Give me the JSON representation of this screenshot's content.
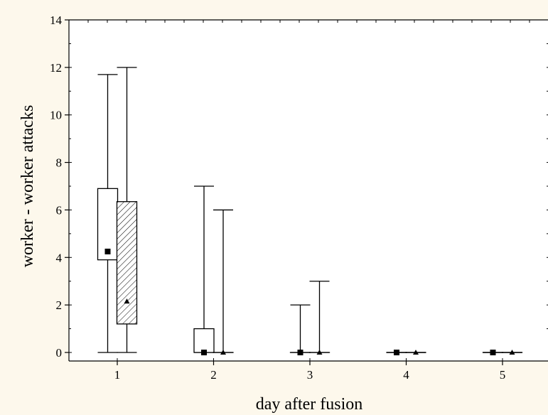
{
  "chart_data": {
    "type": "box",
    "title": "",
    "xlabel": "day after fusion",
    "ylabel": "worker - worker attacks",
    "categories": [
      "1",
      "2",
      "3",
      "4",
      "5"
    ],
    "ylim": [
      0,
      14
    ],
    "yticks": [
      0,
      2,
      4,
      6,
      8,
      10,
      12,
      14
    ],
    "grid": false,
    "legend": "none",
    "series": [
      {
        "marker": "square",
        "fill": "white",
        "boxes": [
          {
            "category": "1",
            "min": 0,
            "q1": 3.9,
            "q3": 6.9,
            "max": 11.7,
            "median": 4.25
          },
          {
            "category": "2",
            "min": 0,
            "q1": 0,
            "q3": 1.0,
            "max": 7.0,
            "median": 0
          },
          {
            "category": "3",
            "min": 0,
            "q1": 0,
            "q3": 0,
            "max": 2.0,
            "median": 0
          },
          {
            "category": "4",
            "min": 0,
            "q1": 0,
            "q3": 0,
            "max": 0,
            "median": 0
          },
          {
            "category": "5",
            "min": 0,
            "q1": 0,
            "q3": 0,
            "max": 0,
            "median": 0
          }
        ]
      },
      {
        "marker": "triangle",
        "fill": "hatched",
        "boxes": [
          {
            "category": "1",
            "min": 0,
            "q1": 1.2,
            "q3": 6.35,
            "max": 12.0,
            "median": 2.15
          },
          {
            "category": "2",
            "min": 0,
            "q1": 0,
            "q3": 0,
            "max": 6.0,
            "median": 0
          },
          {
            "category": "3",
            "min": 0,
            "q1": 0,
            "q3": 0,
            "max": 3.0,
            "median": 0
          },
          {
            "category": "4",
            "min": 0,
            "q1": 0,
            "q3": 0,
            "max": 0,
            "median": 0
          },
          {
            "category": "5",
            "min": 0,
            "q1": 0,
            "q3": 0,
            "max": 0,
            "median": 0
          }
        ]
      }
    ]
  }
}
